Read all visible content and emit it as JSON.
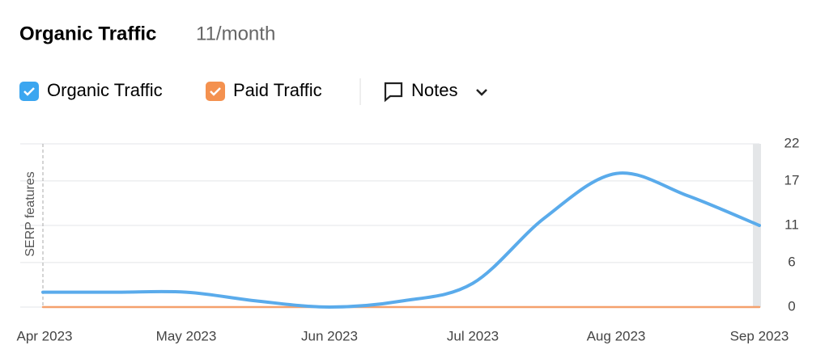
{
  "header": {
    "title": "Organic Traffic",
    "subtitle": "11/month"
  },
  "controls": {
    "legend_organic": "Organic Traffic",
    "legend_paid": "Paid Traffic",
    "notes": "Notes"
  },
  "chart_data": {
    "type": "line",
    "annotation": "SERP features",
    "categories": [
      "Apr 2023",
      null,
      "May 2023",
      null,
      "Jun 2023",
      null,
      "Jul 2023",
      null,
      "Aug 2023",
      null,
      "Sep 2023"
    ],
    "series": [
      {
        "name": "Organic Traffic",
        "color": "#5aabeb",
        "values": [
          2,
          2,
          2,
          0.8,
          0,
          0.8,
          3.2,
          12,
          18,
          15,
          11
        ]
      },
      {
        "name": "Paid Traffic",
        "color": "#f4a06c",
        "values": [
          0,
          0,
          0,
          0,
          0,
          0,
          0,
          0,
          0,
          0,
          0
        ]
      }
    ],
    "ylim": [
      0,
      22
    ],
    "yticks": [
      0,
      6,
      11,
      17,
      22
    ],
    "grid": true
  }
}
